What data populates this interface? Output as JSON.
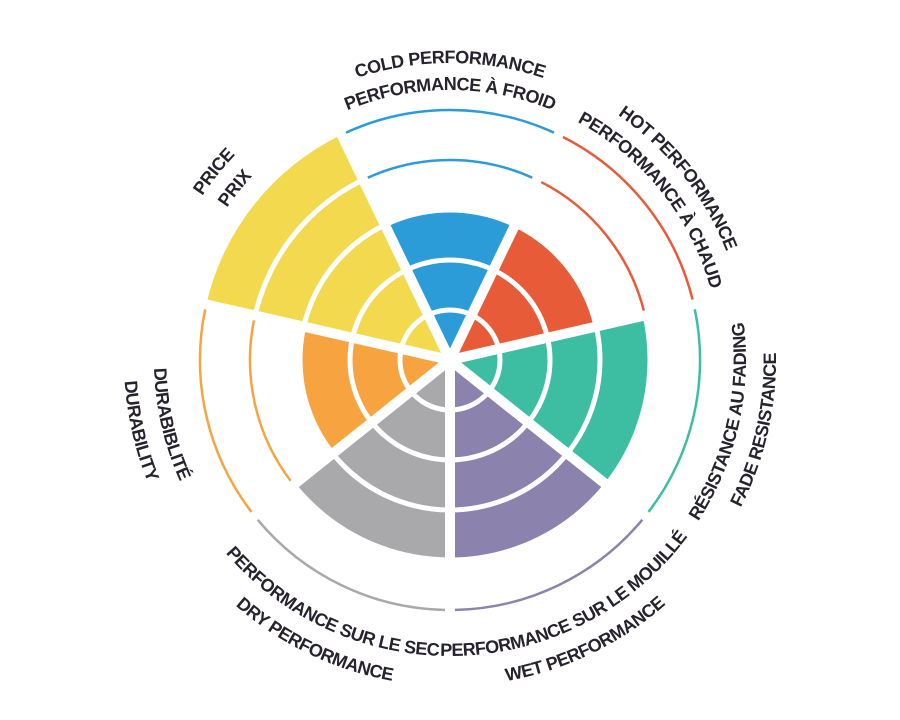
{
  "page": {
    "background_color": "#ffffff",
    "label_text_color": "#26222e"
  },
  "chart_data": {
    "type": "polar_area",
    "subtype": "seven-sector brake-pad performance wheel, bilingual curved labels",
    "rings": 5,
    "value_range": [
      0,
      5
    ],
    "start": "top",
    "direction": "clockwise",
    "grid": "white concentric ring separators inside filled wedges; unfilled rings shown as thin colored arcs",
    "legend_position": "none",
    "categories": [
      {
        "id": "cold-performance",
        "label_en": "COLD PERFORMANCE",
        "label_fr": "PERFORMANCE À FROID",
        "value": 3,
        "color": "#2B9CD8",
        "label_orientation": "outward"
      },
      {
        "id": "hot-performance",
        "label_en": "HOT PERFORMANCE",
        "label_fr": "PERFORMANCE À CHAUD",
        "value": 3,
        "color": "#E85B38",
        "label_orientation": "outward"
      },
      {
        "id": "fade-resistance",
        "label_en": "FADE RESISTANCE",
        "label_fr": "RÉSISTANCE AU FADING",
        "value": 4,
        "color": "#3DBDA2",
        "label_orientation": "inward"
      },
      {
        "id": "wet-performance",
        "label_en": "WET PERFORMANCE",
        "label_fr": "PERFORMANCE SUR LE MOUILLÉ",
        "value": 4,
        "color": "#8B83AD",
        "label_orientation": "inward"
      },
      {
        "id": "dry-performance",
        "label_en": "DRY PERFORMANCE",
        "label_fr": "PERFORMANCE SUR LE SEC",
        "value": 4,
        "color": "#A9A8AA",
        "label_orientation": "inward"
      },
      {
        "id": "durability",
        "label_en": "DURABILITY",
        "label_fr": "DURABIBLITÉ",
        "value": 3,
        "color": "#F7A440",
        "label_orientation": "inward"
      },
      {
        "id": "price",
        "label_en": "PRICE",
        "label_fr": "PRIX",
        "value": 5,
        "color": "#F2D94E",
        "label_orientation": "outward"
      }
    ]
  }
}
